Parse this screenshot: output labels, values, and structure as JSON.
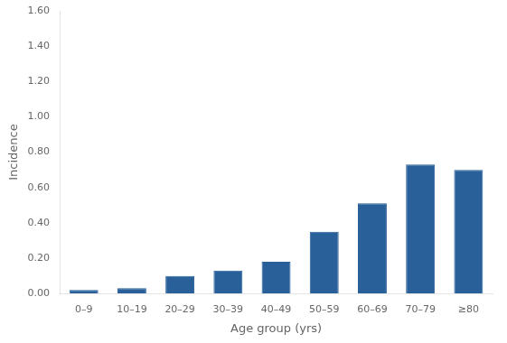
{
  "chart_data": {
    "type": "bar",
    "categories": [
      "0–9",
      "10–19",
      "20–29",
      "30–39",
      "40–49",
      "50–59",
      "60–69",
      "70–79",
      "≥80"
    ],
    "values": [
      0.02,
      0.03,
      0.1,
      0.13,
      0.18,
      0.35,
      0.51,
      0.73,
      0.7
    ],
    "color": "#2a6099",
    "xlabel": "Age group (yrs)",
    "ylabel": "Incidence",
    "ylim": [
      0,
      1.6
    ],
    "yticks": [
      {
        "value": 0,
        "label": "0.00"
      },
      {
        "value": 0.2,
        "label": "0.20"
      },
      {
        "value": 0.4,
        "label": "0.40"
      },
      {
        "value": 0.6,
        "label": "0.60"
      },
      {
        "value": 0.8,
        "label": "0.80"
      },
      {
        "value": 1.0,
        "label": "1.00"
      },
      {
        "value": 1.2,
        "label": "1.20"
      },
      {
        "value": 1.4,
        "label": "1.40"
      },
      {
        "value": 1.6,
        "label": "1.60"
      }
    ],
    "grid": false
  }
}
